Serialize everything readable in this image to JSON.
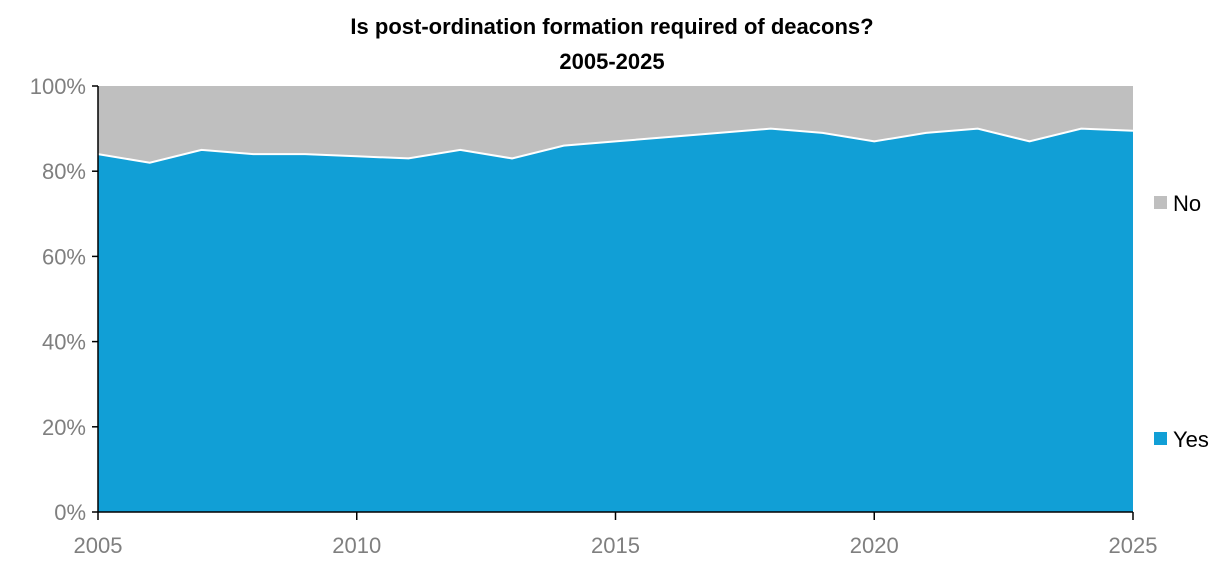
{
  "chart_data": {
    "type": "area",
    "stacked": true,
    "percent": true,
    "title": "Is post-ordination formation required of deacons?",
    "subtitle": "2005-2025",
    "xlabel": "",
    "ylabel": "",
    "x": [
      2005,
      2006,
      2007,
      2008,
      2009,
      2010,
      2011,
      2012,
      2013,
      2014,
      2015,
      2016,
      2017,
      2018,
      2019,
      2020,
      2021,
      2022,
      2023,
      2024,
      2025
    ],
    "xlim": [
      2005,
      2025
    ],
    "ylim": [
      0,
      100
    ],
    "x_ticks": [
      2005,
      2010,
      2015,
      2020,
      2025
    ],
    "x_tick_labels": [
      "2005",
      "2010",
      "2015",
      "2020",
      "2025"
    ],
    "y_ticks": [
      0,
      20,
      40,
      60,
      80,
      100
    ],
    "y_tick_labels": [
      "0%",
      "20%",
      "40%",
      "60%",
      "80%",
      "100%"
    ],
    "grid": false,
    "legend_position": "right",
    "series": [
      {
        "name": "Yes",
        "color": "#119fd6",
        "values": [
          84,
          82,
          85,
          84,
          84,
          83.5,
          83,
          85,
          83,
          86,
          87,
          88,
          89,
          90,
          89,
          87,
          89,
          90,
          87,
          90,
          89.5
        ]
      },
      {
        "name": "No",
        "color": "#bfbfbf",
        "values": [
          16,
          18,
          15,
          16,
          16,
          16.5,
          17,
          15,
          17,
          14,
          13,
          12,
          11,
          10,
          11,
          13,
          11,
          10,
          13,
          10,
          10.5
        ]
      }
    ],
    "legend": [
      {
        "name": "No",
        "color": "#bfbfbf"
      },
      {
        "name": "Yes",
        "color": "#119fd6"
      }
    ]
  }
}
